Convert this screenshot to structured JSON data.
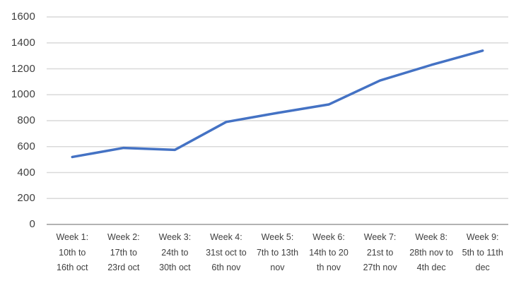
{
  "chart_data": {
    "type": "line",
    "title": "",
    "series_name": "",
    "categories": [
      "Week 1:\n10th to\n16th oct",
      "Week 2:\n17th to\n23rd oct",
      "Week 3:\n24th to\n30th oct",
      "Week 4:\n31st oct to\n6th nov",
      "Week 5:\n7th to 13th\nnov",
      "Week 6:\n14th to 20\nth nov",
      "Week 7:\n21st to\n27th nov",
      "Week 8:\n28th nov to\n4th dec",
      "Week 9:\n5th to 11th\ndec"
    ],
    "values": [
      520,
      590,
      575,
      790,
      860,
      925,
      1110,
      1230,
      1340
    ],
    "xlabel": "",
    "ylabel": "",
    "ylim": [
      0,
      1600
    ],
    "yticks": [
      0,
      200,
      400,
      600,
      800,
      1000,
      1200,
      1400,
      1600
    ],
    "grid": "horizontal",
    "legend": "none",
    "colors": {
      "line": "#4472C4",
      "gridline": "#D9D9D9",
      "axis_line": "#B3B3B3",
      "label_text": "#404040",
      "background": "#FFFFFF"
    }
  }
}
